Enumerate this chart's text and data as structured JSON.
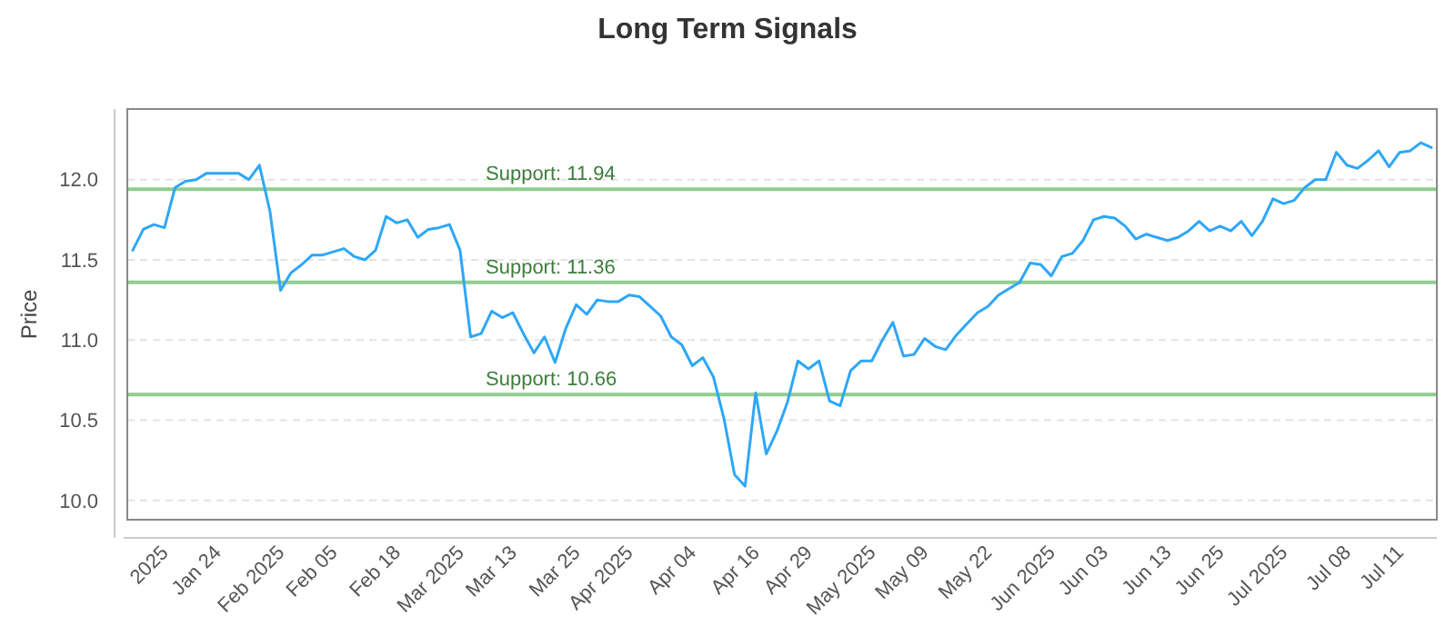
{
  "chart_data": {
    "type": "line",
    "title": "Long Term Signals",
    "ylabel": "Price",
    "categories": [
      null,
      null,
      null,
      "2025",
      null,
      null,
      null,
      null,
      "Jan 24",
      null,
      null,
      null,
      null,
      null,
      "Feb 2025",
      null,
      null,
      null,
      null,
      "Feb 05",
      null,
      null,
      null,
      null,
      null,
      "Feb 18",
      null,
      null,
      null,
      null,
      null,
      "Mar 2025",
      null,
      null,
      null,
      null,
      "Mar 13",
      null,
      null,
      null,
      null,
      null,
      "Mar 25",
      null,
      null,
      null,
      null,
      "Apr 2025",
      null,
      null,
      null,
      null,
      null,
      "Apr 04",
      null,
      null,
      null,
      null,
      null,
      "Apr 16",
      null,
      null,
      null,
      null,
      "Apr 29",
      null,
      null,
      null,
      null,
      null,
      "May 2025",
      null,
      null,
      null,
      null,
      "May 09",
      null,
      null,
      null,
      null,
      null,
      "May 22",
      null,
      null,
      null,
      null,
      null,
      "Jun 2025",
      null,
      null,
      null,
      null,
      "Jun 03",
      null,
      null,
      null,
      null,
      null,
      "Jun 13",
      null,
      null,
      null,
      null,
      "Jun 25",
      null,
      null,
      null,
      null,
      null,
      "Jul 2025",
      null,
      null,
      null,
      null,
      null,
      "Jul 08",
      null,
      null,
      null,
      null,
      "Jul 11",
      null,
      null,
      null
    ],
    "series": [
      {
        "color": "#2ea7f7",
        "values": [
          11.56,
          11.69,
          11.72,
          11.7,
          11.95,
          11.99,
          12.0,
          12.04,
          12.04,
          12.04,
          12.04,
          12.0,
          12.09,
          11.8,
          11.31,
          11.42,
          11.47,
          11.53,
          11.53,
          11.55,
          11.57,
          11.52,
          11.5,
          11.56,
          11.77,
          11.73,
          11.75,
          11.64,
          11.69,
          11.7,
          11.72,
          11.56,
          11.02,
          11.04,
          11.18,
          11.14,
          11.17,
          11.04,
          10.92,
          11.02,
          10.86,
          11.07,
          11.22,
          11.16,
          11.25,
          11.24,
          11.24,
          11.28,
          11.27,
          11.21,
          11.15,
          11.02,
          10.97,
          10.84,
          10.89,
          10.77,
          10.51,
          10.16,
          10.09,
          10.67,
          10.29,
          10.43,
          10.61,
          10.87,
          10.82,
          10.87,
          10.62,
          10.59,
          10.81,
          10.87,
          10.87,
          11.0,
          11.11,
          10.9,
          10.91,
          11.01,
          10.96,
          10.94,
          11.03,
          11.1,
          11.17,
          11.21,
          11.28,
          11.32,
          11.36,
          11.48,
          11.47,
          11.4,
          11.52,
          11.54,
          11.62,
          11.75,
          11.77,
          11.76,
          11.71,
          11.63,
          11.66,
          11.64,
          11.62,
          11.64,
          11.68,
          11.74,
          11.68,
          11.71,
          11.68,
          11.74,
          11.65,
          11.74,
          11.88,
          11.85,
          11.87,
          11.95,
          12.0,
          12.0,
          12.17,
          12.09,
          12.07,
          12.12,
          12.18,
          12.08,
          12.17,
          12.18,
          12.23,
          12.2
        ]
      }
    ],
    "ylim": [
      9.88,
      12.44
    ],
    "yticks": [
      {
        "value": 10,
        "label": "10.0"
      },
      10.5,
      {
        "value": 11,
        "label": "11.0"
      },
      11.5,
      {
        "value": 12,
        "label": "12.0"
      }
    ],
    "grid": "y",
    "marker": "none",
    "line_style": "solid",
    "ref_lines": [
      {
        "axis": "y",
        "value": 11.94,
        "label": "Support: 11.94",
        "color": "#8fce8f"
      },
      {
        "axis": "y",
        "value": 11.36,
        "label": "Support: 11.36",
        "color": "#8fce8f"
      },
      {
        "axis": "y",
        "value": 10.66,
        "label": "Support: 10.66",
        "color": "#8fce8f"
      }
    ]
  }
}
